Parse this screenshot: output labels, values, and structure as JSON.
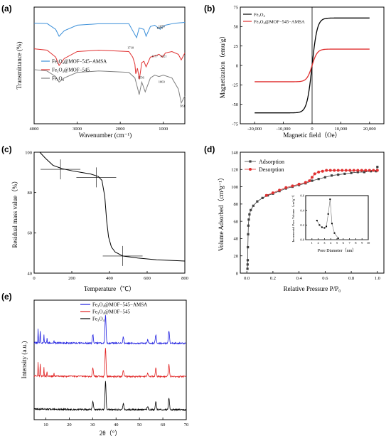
{
  "chart_data": [
    {
      "panel": "(a)",
      "type": "line",
      "xlabel": "Wavenumber (cm⁻¹)",
      "ylabel": "Transmittance (%)",
      "xlim": [
        4000,
        500
      ],
      "xticks": [
        4000,
        3000,
        2000,
        1000
      ],
      "legend": [
        "Fe₃O₄@MOF−545−AMSA",
        "Fe₃O₄@MOF−545",
        "Fe₃O₄"
      ],
      "annotations": [
        "1071",
        "1055",
        "1710",
        "1556",
        "1003",
        "1177",
        "1021",
        "583"
      ],
      "series": [
        {
          "name": "Fe₃O₄@MOF−545−AMSA",
          "color": "#3b8fd9",
          "offset": 4.4,
          "points": [
            [
              4000,
              0.05
            ],
            [
              3700,
              0.02
            ],
            [
              3500,
              -0.4
            ],
            [
              3420,
              -0.9
            ],
            [
              3300,
              -0.5
            ],
            [
              3000,
              -0.1
            ],
            [
              2500,
              0
            ],
            [
              1800,
              0
            ],
            [
              1710,
              -0.5
            ],
            [
              1620,
              -1.0
            ],
            [
              1560,
              -0.3
            ],
            [
              1450,
              -0.4
            ],
            [
              1400,
              -0.9
            ],
            [
              1300,
              -0.2
            ],
            [
              1200,
              -0.1
            ],
            [
              1071,
              -0.4
            ],
            [
              1055,
              -0.3
            ],
            [
              950,
              -0.1
            ],
            [
              800,
              0
            ],
            [
              700,
              0.05
            ],
            [
              500,
              0.1
            ]
          ]
        },
        {
          "name": "Fe₃O₄@MOF−545",
          "color": "#e03030",
          "offset": 2.6,
          "points": [
            [
              4000,
              0
            ],
            [
              3700,
              -0.1
            ],
            [
              3500,
              -0.6
            ],
            [
              3420,
              -1.2
            ],
            [
              3300,
              -0.7
            ],
            [
              3000,
              -0.2
            ],
            [
              2500,
              -0.1
            ],
            [
              1800,
              -0.2
            ],
            [
              1710,
              -0.6
            ],
            [
              1660,
              -1.1
            ],
            [
              1640,
              -1.8
            ],
            [
              1600,
              -1.4
            ],
            [
              1556,
              -2.2
            ],
            [
              1500,
              -1.0
            ],
            [
              1450,
              -0.9
            ],
            [
              1400,
              -1.3
            ],
            [
              1300,
              -0.6
            ],
            [
              1177,
              -0.5
            ],
            [
              1100,
              -0.4
            ],
            [
              1021,
              -0.6
            ],
            [
              950,
              -0.3
            ],
            [
              800,
              -0.2
            ],
            [
              650,
              -0.4
            ],
            [
              583,
              -0.8
            ],
            [
              500,
              -0.3
            ]
          ]
        },
        {
          "name": "Fe₃O₄",
          "color": "#808080",
          "offset": 1.1,
          "points": [
            [
              4000,
              0
            ],
            [
              3700,
              -0.1
            ],
            [
              3500,
              -0.5
            ],
            [
              3420,
              -0.9
            ],
            [
              3300,
              -0.6
            ],
            [
              3000,
              -0.2
            ],
            [
              2500,
              -0.1
            ],
            [
              1800,
              -0.2
            ],
            [
              1660,
              -0.6
            ],
            [
              1600,
              -1.3
            ],
            [
              1560,
              -1.8
            ],
            [
              1500,
              -0.9
            ],
            [
              1420,
              -1.6
            ],
            [
              1300,
              -0.6
            ],
            [
              1200,
              -0.4
            ],
            [
              1100,
              -0.5
            ],
            [
              1000,
              -0.4
            ],
            [
              800,
              -0.6
            ],
            [
              650,
              -1.4
            ],
            [
              583,
              -2.4
            ],
            [
              500,
              -1.9
            ]
          ]
        }
      ]
    },
    {
      "panel": "(b)",
      "type": "line",
      "xlabel": "Magnetic field（Oe）",
      "ylabel": "Magnetization（emu/g）",
      "xlim": [
        -25000,
        25000
      ],
      "ylim": [
        -75,
        75
      ],
      "xticks": [
        -20000,
        -10000,
        0,
        10000,
        20000
      ],
      "xtick_labels": [
        "-20,000",
        "-10,000",
        "0",
        "10,000",
        "20,000"
      ],
      "yticks": [
        -75,
        -50,
        -25,
        0,
        25,
        50,
        75
      ],
      "legend": [
        "Fe₃O₄",
        "Fe₃O₄@MOF−545−AMSA"
      ],
      "series": [
        {
          "name": "Fe₃O₄",
          "color": "#000000",
          "ms": 61,
          "h0": 1800
        },
        {
          "name": "Fe₃O₄@MOF−545−AMSA",
          "color": "#e03030",
          "ms": 21,
          "h0": 1800
        }
      ]
    },
    {
      "panel": "(c)",
      "type": "line",
      "xlabel": "Temperature（℃）",
      "ylabel": "Residual mass value（%）",
      "xlim": [
        0,
        800
      ],
      "ylim": [
        40,
        100
      ],
      "xticks": [
        0,
        200,
        400,
        600,
        800
      ],
      "yticks": [
        40,
        60,
        80,
        100
      ],
      "series": [
        {
          "name": "",
          "color": "#000000",
          "points": [
            [
              30,
              100
            ],
            [
              60,
              97
            ],
            [
              100,
              93.5
            ],
            [
              150,
              91.8
            ],
            [
              200,
              90.8
            ],
            [
              250,
              90
            ],
            [
              300,
              89.2
            ],
            [
              340,
              88
            ],
            [
              360,
              86
            ],
            [
              375,
              78
            ],
            [
              385,
              66
            ],
            [
              395,
              58
            ],
            [
              410,
              53
            ],
            [
              430,
              50.5
            ],
            [
              470,
              48.5
            ],
            [
              550,
              47.5
            ],
            [
              650,
              46.6
            ],
            [
              800,
              46
            ]
          ]
        }
      ],
      "crosshairs": [
        [
          140,
          91.5
        ],
        [
          330,
          87.5
        ],
        [
          470,
          48.5
        ]
      ]
    },
    {
      "panel": "(d)",
      "type": "scatter",
      "xlabel": "Relative Pressure P/P₀",
      "ylabel": "Volume Adsorbed（cm³g⁻¹）",
      "xlim": [
        -0.05,
        1.05
      ],
      "ylim": [
        0,
        140
      ],
      "xticks": [
        0,
        0.2,
        0.4,
        0.6,
        0.8,
        1.0
      ],
      "xtick_labels": [
        "0.0",
        "0.2",
        "0.4",
        "0.6",
        "0.8",
        "1.0"
      ],
      "yticks": [
        0,
        20,
        40,
        60,
        80,
        100,
        120,
        140
      ],
      "legend": [
        "Adsorption",
        "Desorption"
      ],
      "series": [
        {
          "name": "Adsorption",
          "color": "#404040",
          "points": [
            [
              0.005,
              5
            ],
            [
              0.006,
              10
            ],
            [
              0.007,
              15
            ],
            [
              0.008,
              30
            ],
            [
              0.01,
              45
            ],
            [
              0.012,
              55
            ],
            [
              0.015,
              62
            ],
            [
              0.02,
              68
            ],
            [
              0.03,
              73
            ],
            [
              0.05,
              78
            ],
            [
              0.08,
              83
            ],
            [
              0.12,
              87
            ],
            [
              0.16,
              90
            ],
            [
              0.2,
              92
            ],
            [
              0.25,
              95
            ],
            [
              0.3,
              98
            ],
            [
              0.35,
              100
            ],
            [
              0.4,
              102
            ],
            [
              0.45,
              104
            ],
            [
              0.5,
              107
            ],
            [
              0.55,
              109
            ],
            [
              0.6,
              111
            ],
            [
              0.65,
              113
            ],
            [
              0.7,
              114
            ],
            [
              0.75,
              115
            ],
            [
              0.8,
              116
            ],
            [
              0.85,
              117
            ],
            [
              0.9,
              117
            ],
            [
              0.95,
              118
            ],
            [
              0.99,
              118
            ],
            [
              1.0,
              123
            ]
          ]
        },
        {
          "name": "Desorption",
          "color": "#e03030",
          "points": [
            [
              1.0,
              119
            ],
            [
              0.97,
              119
            ],
            [
              0.94,
              119
            ],
            [
              0.91,
              119
            ],
            [
              0.88,
              119
            ],
            [
              0.85,
              119
            ],
            [
              0.82,
              119
            ],
            [
              0.79,
              119
            ],
            [
              0.76,
              119
            ],
            [
              0.73,
              119
            ],
            [
              0.7,
              119
            ],
            [
              0.67,
              119
            ],
            [
              0.64,
              119
            ],
            [
              0.61,
              119
            ],
            [
              0.58,
              118
            ],
            [
              0.55,
              117
            ],
            [
              0.52,
              115
            ],
            [
              0.5,
              111
            ],
            [
              0.48,
              107
            ],
            [
              0.45,
              105
            ],
            [
              0.4,
              103
            ],
            [
              0.35,
              101
            ],
            [
              0.3,
              99
            ],
            [
              0.25,
              96
            ],
            [
              0.2,
              93
            ],
            [
              0.15,
              90
            ]
          ]
        }
      ],
      "inset": {
        "xlabel": "Pore Diameter（nm）",
        "ylabel": "Incremental Pore Volume（cm³g⁻¹）",
        "xlim": [
          0,
          10
        ],
        "ylim": [
          0,
          0.6
        ],
        "xticks": [
          1,
          2,
          3,
          4,
          5,
          6,
          7,
          8,
          9,
          10
        ],
        "yticks": [
          0.0,
          0.2,
          0.4,
          0.6
        ],
        "ytick_labels": [
          "0.0",
          "0.2",
          "0.4",
          "0.6"
        ],
        "points": [
          [
            1.8,
            0.26
          ],
          [
            2.2,
            0.2
          ],
          [
            2.6,
            0.17
          ],
          [
            3.0,
            0.16
          ],
          [
            3.3,
            0.18
          ],
          [
            3.6,
            0.35
          ],
          [
            3.9,
            0.55
          ],
          [
            4.2,
            0.22
          ],
          [
            4.6,
            0.09
          ],
          [
            5.2,
            0.02
          ]
        ]
      }
    },
    {
      "panel": "(e)",
      "type": "line",
      "xlabel": "2θ（°）",
      "ylabel": "Intensity (a.u.)",
      "xlim": [
        5,
        70
      ],
      "xticks": [
        10,
        20,
        30,
        40,
        50,
        60,
        70
      ],
      "legend": [
        "Fe₃O₄@MOF−545−AMSA",
        "Fe₃O₄@MOF−545",
        "Fe₃O₄"
      ],
      "peaks": [
        [
          30.1,
          0.3
        ],
        [
          35.5,
          1.0
        ],
        [
          43.1,
          0.22
        ],
        [
          53.5,
          0.12
        ],
        [
          57.0,
          0.3
        ],
        [
          62.6,
          0.42
        ]
      ],
      "mof_peaks": [
        [
          6.7,
          0.5
        ],
        [
          7.6,
          0.45
        ],
        [
          9.2,
          0.3
        ],
        [
          10.5,
          0.18
        ],
        [
          13.5,
          0.1
        ]
      ],
      "series": [
        {
          "name": "Fe₃O₄@MOF−545−AMSA",
          "color": "#1f1fe0",
          "offset": 2.0,
          "mof": true
        },
        {
          "name": "Fe₃O₄@MOF−545",
          "color": "#e01f1f",
          "offset": 1.0,
          "mof": true
        },
        {
          "name": "Fe₃O₄",
          "color": "#000000",
          "offset": 0.0,
          "mof": false
        }
      ]
    }
  ]
}
